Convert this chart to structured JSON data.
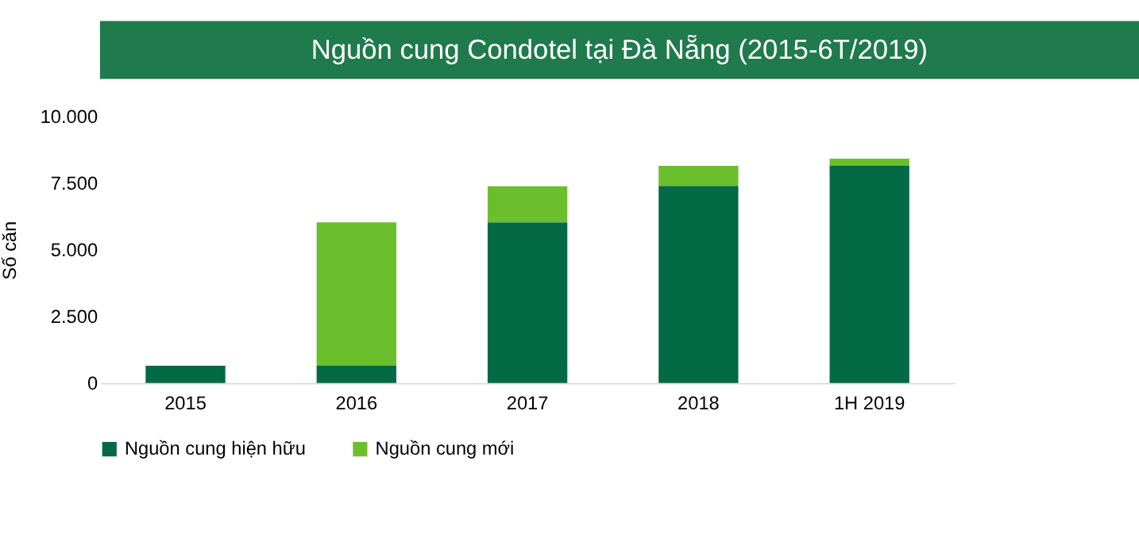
{
  "chart_data": {
    "type": "bar",
    "title": "Nguồn cung Condotel tại Đà Nẵng (2015-6T/2019)",
    "ylabel": "Số căn",
    "categories": [
      "2015",
      "2016",
      "2017",
      "2018",
      "1H 2019"
    ],
    "stacked": true,
    "legend": "bottom",
    "series": [
      {
        "name": "Nguồn cung hiện hữu",
        "color": "#046a45",
        "values": [
          650,
          650,
          6030,
          7400,
          8150
        ]
      },
      {
        "name": "Nguồn cung mới",
        "color": "#6bbf2c",
        "values": [
          0,
          5380,
          1360,
          750,
          270
        ]
      }
    ],
    "ylim": [
      0,
      10000
    ],
    "yticks": [
      0,
      {
        "value": 2500,
        "label": "2.500"
      },
      {
        "value": 5000,
        "label": "5.000"
      },
      {
        "value": 7500,
        "label": "7.500"
      },
      {
        "value": 10000,
        "label": "10.000"
      }
    ]
  }
}
